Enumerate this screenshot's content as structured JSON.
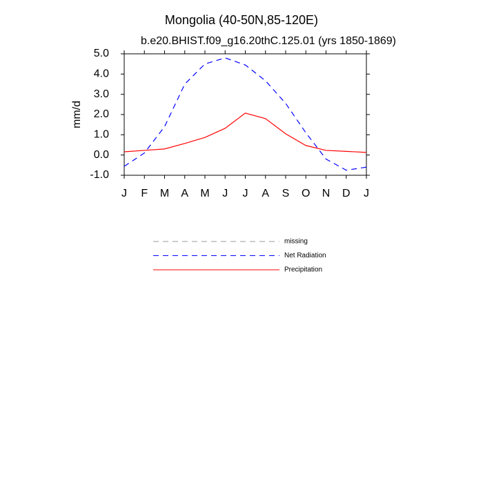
{
  "chart_data": {
    "type": "line",
    "title": "Mongolia (40-50N,85-120E)",
    "subtitle": "b.e20.BHIST.f09_g16.20thC.125.01 (yrs 1850-1869)",
    "y_label": "mm/d",
    "categories": [
      "J",
      "F",
      "M",
      "A",
      "M",
      "J",
      "J",
      "A",
      "S",
      "O",
      "N",
      "D",
      "J"
    ],
    "series": [
      {
        "name": "missing",
        "color": "#999999",
        "dashed": true,
        "values": [
          null,
          null,
          null,
          null,
          null,
          null,
          null,
          null,
          null,
          null,
          null,
          null,
          null
        ]
      },
      {
        "name": "Net Radiation",
        "color": "#0000ff",
        "dashed": true,
        "values": [
          -0.56,
          0.1,
          1.4,
          3.5,
          4.5,
          4.8,
          4.45,
          3.67,
          2.55,
          1.1,
          -0.2,
          -0.75,
          -0.6
        ]
      },
      {
        "name": "Precipitation",
        "color": "#ff0000",
        "dashed": false,
        "values": [
          0.16,
          0.23,
          0.3,
          0.57,
          0.87,
          1.32,
          2.07,
          1.8,
          1.05,
          0.47,
          0.23,
          0.18,
          0.13
        ]
      }
    ],
    "ylim": [
      -1,
      5
    ],
    "yticks": [
      {
        "value": -1,
        "label": "-1.0"
      },
      {
        "value": 0,
        "label": "0.0"
      },
      {
        "value": 1,
        "label": "1.0"
      },
      {
        "value": 2,
        "label": "2.0"
      },
      {
        "value": 3,
        "label": "3.0"
      },
      {
        "value": 4,
        "label": "4.0"
      },
      {
        "value": 5,
        "label": "5.0"
      }
    ]
  }
}
